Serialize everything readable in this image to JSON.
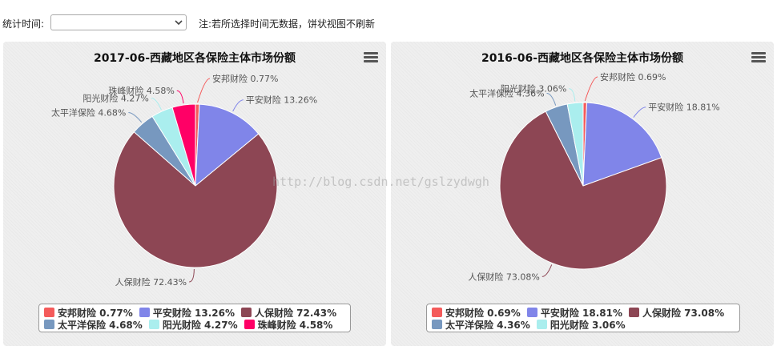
{
  "toolbar": {
    "label": "统计时间:",
    "select_value": "",
    "note": "注:若所选择时间无数据，饼状视图不刷新"
  },
  "watermark": "http://blog.csdn.net/gslzydwgh",
  "chart_data": [
    {
      "type": "pie",
      "title": "2017-06-西藏地区各保险主体市场份额",
      "slices": [
        {
          "name": "安邦财险",
          "value": 0.77,
          "label": "安邦财险 0.77%",
          "color": "#f45b5b"
        },
        {
          "name": "平安财险",
          "value": 13.26,
          "label": "平安财险 13.26%",
          "color": "#8085e9"
        },
        {
          "name": "人保财险",
          "value": 72.43,
          "label": "人保财险 72.43%",
          "color": "#8d4654"
        },
        {
          "name": "太平洋保险",
          "value": 4.68,
          "label": "太平洋保险 4.68%",
          "color": "#7798bf"
        },
        {
          "name": "阳光财险",
          "value": 4.27,
          "label": "阳光财险 4.27%",
          "color": "#aaeeee"
        },
        {
          "name": "珠峰财险",
          "value": 4.58,
          "label": "珠峰财险 4.58%",
          "color": "#ff0066"
        }
      ],
      "legend": {
        "rows": [
          [
            0,
            1,
            2
          ],
          [
            3,
            4,
            5
          ]
        ],
        "labels": [
          "安邦财险 0.77%",
          "平安财险 13.26%",
          "人保财险 72.43%",
          "太平洋保险 4.68%",
          "阳光财险 4.27%",
          "珠峰财险 4.58%"
        ]
      }
    },
    {
      "type": "pie",
      "title": "2016-06-西藏地区各保险主体市场份额",
      "slices": [
        {
          "name": "安邦财险",
          "value": 0.69,
          "label": "安邦财险 0.69%",
          "color": "#f45b5b"
        },
        {
          "name": "平安财险",
          "value": 18.81,
          "label": "平安财险 18.81%",
          "color": "#8085e9"
        },
        {
          "name": "人保财险",
          "value": 73.08,
          "label": "人保财险 73.08%",
          "color": "#8d4654"
        },
        {
          "name": "太平洋保险",
          "value": 4.36,
          "label": "太平洋保险 4.36%",
          "color": "#7798bf"
        },
        {
          "name": "阳光财险",
          "value": 3.06,
          "label": "阳光财险 3.06%",
          "color": "#aaeeee"
        }
      ],
      "legend": {
        "rows": [
          [
            0,
            1,
            2
          ],
          [
            3,
            4
          ]
        ],
        "labels": [
          "安邦财险 0.69%",
          "平安财险 18.81%",
          "人保财险 73.08%",
          "太平洋保险 4.36%",
          "阳光财险 3.06%"
        ]
      }
    }
  ]
}
